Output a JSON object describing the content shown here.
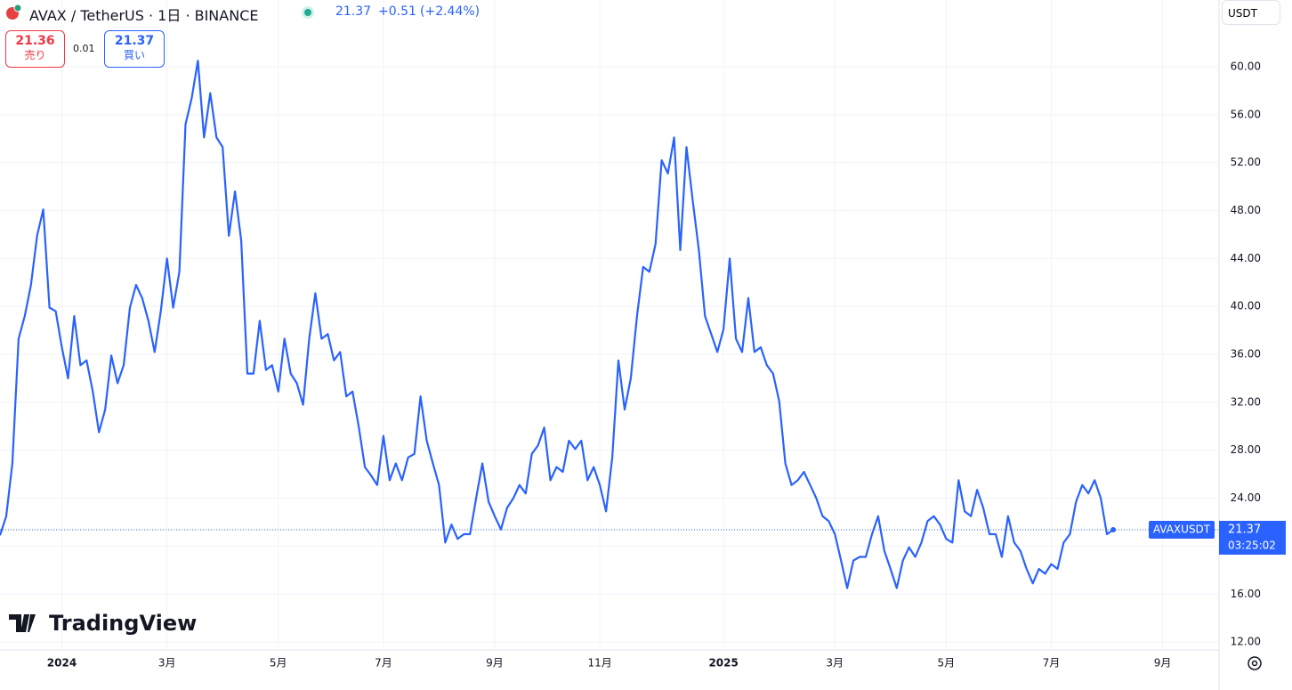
{
  "header": {
    "title": "AVAX / TetherUS · 1日 · BINANCE",
    "last": "21.37",
    "change": "+0.51",
    "change_percent": "(+2.44%)",
    "sell": {
      "price": "21.36",
      "label": "売り"
    },
    "spread": "0.01",
    "buy": {
      "price": "21.37",
      "label": "買い"
    },
    "currency": "USDT"
  },
  "logo": "TradingView",
  "chart_data": {
    "type": "line",
    "categories": [
      null,
      null,
      null,
      null,
      null,
      null,
      null,
      null,
      null,
      null,
      "2024",
      null,
      null,
      null,
      null,
      null,
      null,
      null,
      null,
      null,
      null,
      null,
      null,
      null,
      null,
      null,
      null,
      "3月",
      null,
      null,
      null,
      null,
      null,
      null,
      null,
      null,
      null,
      null,
      null,
      null,
      null,
      null,
      null,
      null,
      null,
      "5月",
      null,
      null,
      null,
      null,
      null,
      null,
      null,
      null,
      null,
      null,
      null,
      null,
      null,
      null,
      null,
      null,
      "7月",
      null,
      null,
      null,
      null,
      null,
      null,
      null,
      null,
      null,
      null,
      null,
      null,
      null,
      null,
      null,
      null,
      null,
      "9月",
      null,
      null,
      null,
      null,
      null,
      null,
      null,
      null,
      null,
      null,
      null,
      null,
      null,
      null,
      null,
      null,
      "11月",
      null,
      null,
      null,
      null,
      null,
      null,
      null,
      null,
      null,
      null,
      null,
      null,
      null,
      null,
      null,
      null,
      null,
      null,
      null,
      "2025",
      null,
      null,
      null,
      null,
      null,
      null,
      null,
      null,
      null,
      null,
      null,
      null,
      null,
      null,
      null,
      null,
      null,
      "3月",
      null,
      null,
      null,
      null,
      null,
      null,
      null,
      null,
      null,
      null,
      null,
      null,
      null,
      null,
      null,
      null,
      null,
      "5月",
      null,
      null,
      null,
      null,
      null,
      null,
      null,
      null,
      null,
      null,
      null,
      null,
      null,
      null,
      null,
      null,
      "7月",
      null,
      null,
      null,
      null,
      null,
      null,
      null,
      null,
      null,
      null,
      null,
      null,
      null,
      null,
      null,
      null,
      null,
      "9月"
    ],
    "series": [
      {
        "name": "AVAXUSDT",
        "color": "#2962ff",
        "values": [
          20.9,
          22.5,
          26.9,
          37.3,
          39.2,
          41.8,
          45.9,
          48.1,
          39.9,
          39.6,
          36.6,
          34.0,
          39.2,
          35.1,
          35.5,
          32.9,
          29.5,
          31.4,
          35.9,
          33.6,
          35.1,
          39.9,
          41.8,
          40.7,
          38.8,
          36.2,
          39.6,
          44.0,
          39.9,
          42.9,
          55.2,
          57.4,
          60.5,
          54.1,
          57.8,
          54.1,
          53.3,
          45.9,
          49.6,
          45.5,
          34.4,
          34.4,
          38.8,
          34.7,
          35.1,
          32.9,
          37.3,
          34.4,
          33.6,
          31.8,
          37.3,
          41.1,
          37.3,
          37.7,
          35.5,
          36.2,
          32.5,
          32.9,
          30.0,
          26.6,
          25.9,
          25.1,
          29.2,
          25.5,
          26.9,
          25.5,
          27.4,
          27.7,
          32.5,
          28.8,
          26.9,
          25.1,
          20.3,
          21.8,
          20.6,
          21.0,
          21.0,
          24.0,
          26.9,
          23.7,
          22.5,
          21.4,
          23.2,
          24.0,
          25.1,
          24.4,
          27.7,
          28.4,
          29.9,
          25.5,
          26.6,
          26.2,
          28.8,
          28.1,
          28.8,
          25.5,
          26.6,
          25.1,
          22.9,
          27.4,
          35.5,
          31.4,
          34.0,
          39.2,
          43.3,
          42.9,
          45.2,
          52.2,
          51.1,
          54.1,
          44.7,
          53.3,
          48.9,
          44.7,
          39.2,
          37.7,
          36.2,
          38.1,
          44.0,
          37.3,
          36.2,
          40.7,
          36.2,
          36.6,
          35.1,
          34.4,
          32.1,
          26.9,
          25.1,
          25.5,
          26.2,
          25.1,
          24.0,
          22.5,
          22.1,
          21.0,
          18.8,
          16.5,
          18.8,
          19.1,
          19.1,
          21.0,
          22.5,
          19.6,
          18.1,
          16.5,
          18.8,
          19.9,
          19.1,
          20.3,
          22.1,
          22.5,
          21.8,
          20.6,
          20.3,
          25.5,
          22.9,
          22.5,
          24.7,
          23.2,
          21.0,
          21.0,
          19.1,
          22.5,
          20.3,
          19.6,
          18.1,
          16.9,
          18.1,
          17.7,
          18.5,
          18.1,
          20.3,
          21.0,
          23.7,
          25.1,
          24.4,
          25.5,
          24.0,
          21.0,
          21.37,
          null,
          null,
          null,
          null,
          null,
          null,
          null,
          null
        ]
      }
    ],
    "last_price": 21.37,
    "last_label": "AVAXUSDT",
    "countdown": "03:25:02",
    "ylim": [
      11.34,
      65.57
    ],
    "yticks": [
      {
        "value": 12,
        "label": "12.00"
      },
      {
        "value": 16,
        "label": "16.00"
      },
      {
        "value": 20,
        "label": "20.00"
      },
      {
        "value": 24,
        "label": "24.00"
      },
      {
        "value": 28,
        "label": "28.00"
      },
      {
        "value": 32,
        "label": "32.00"
      },
      {
        "value": 36,
        "label": "36.00"
      },
      {
        "value": 40,
        "label": "40.00"
      },
      {
        "value": 44,
        "label": "44.00"
      },
      {
        "value": 48,
        "label": "48.00"
      },
      {
        "value": 52,
        "label": "52.00"
      },
      {
        "value": 56,
        "label": "56.00"
      },
      {
        "value": 60,
        "label": "60.00"
      }
    ],
    "grid": true
  }
}
